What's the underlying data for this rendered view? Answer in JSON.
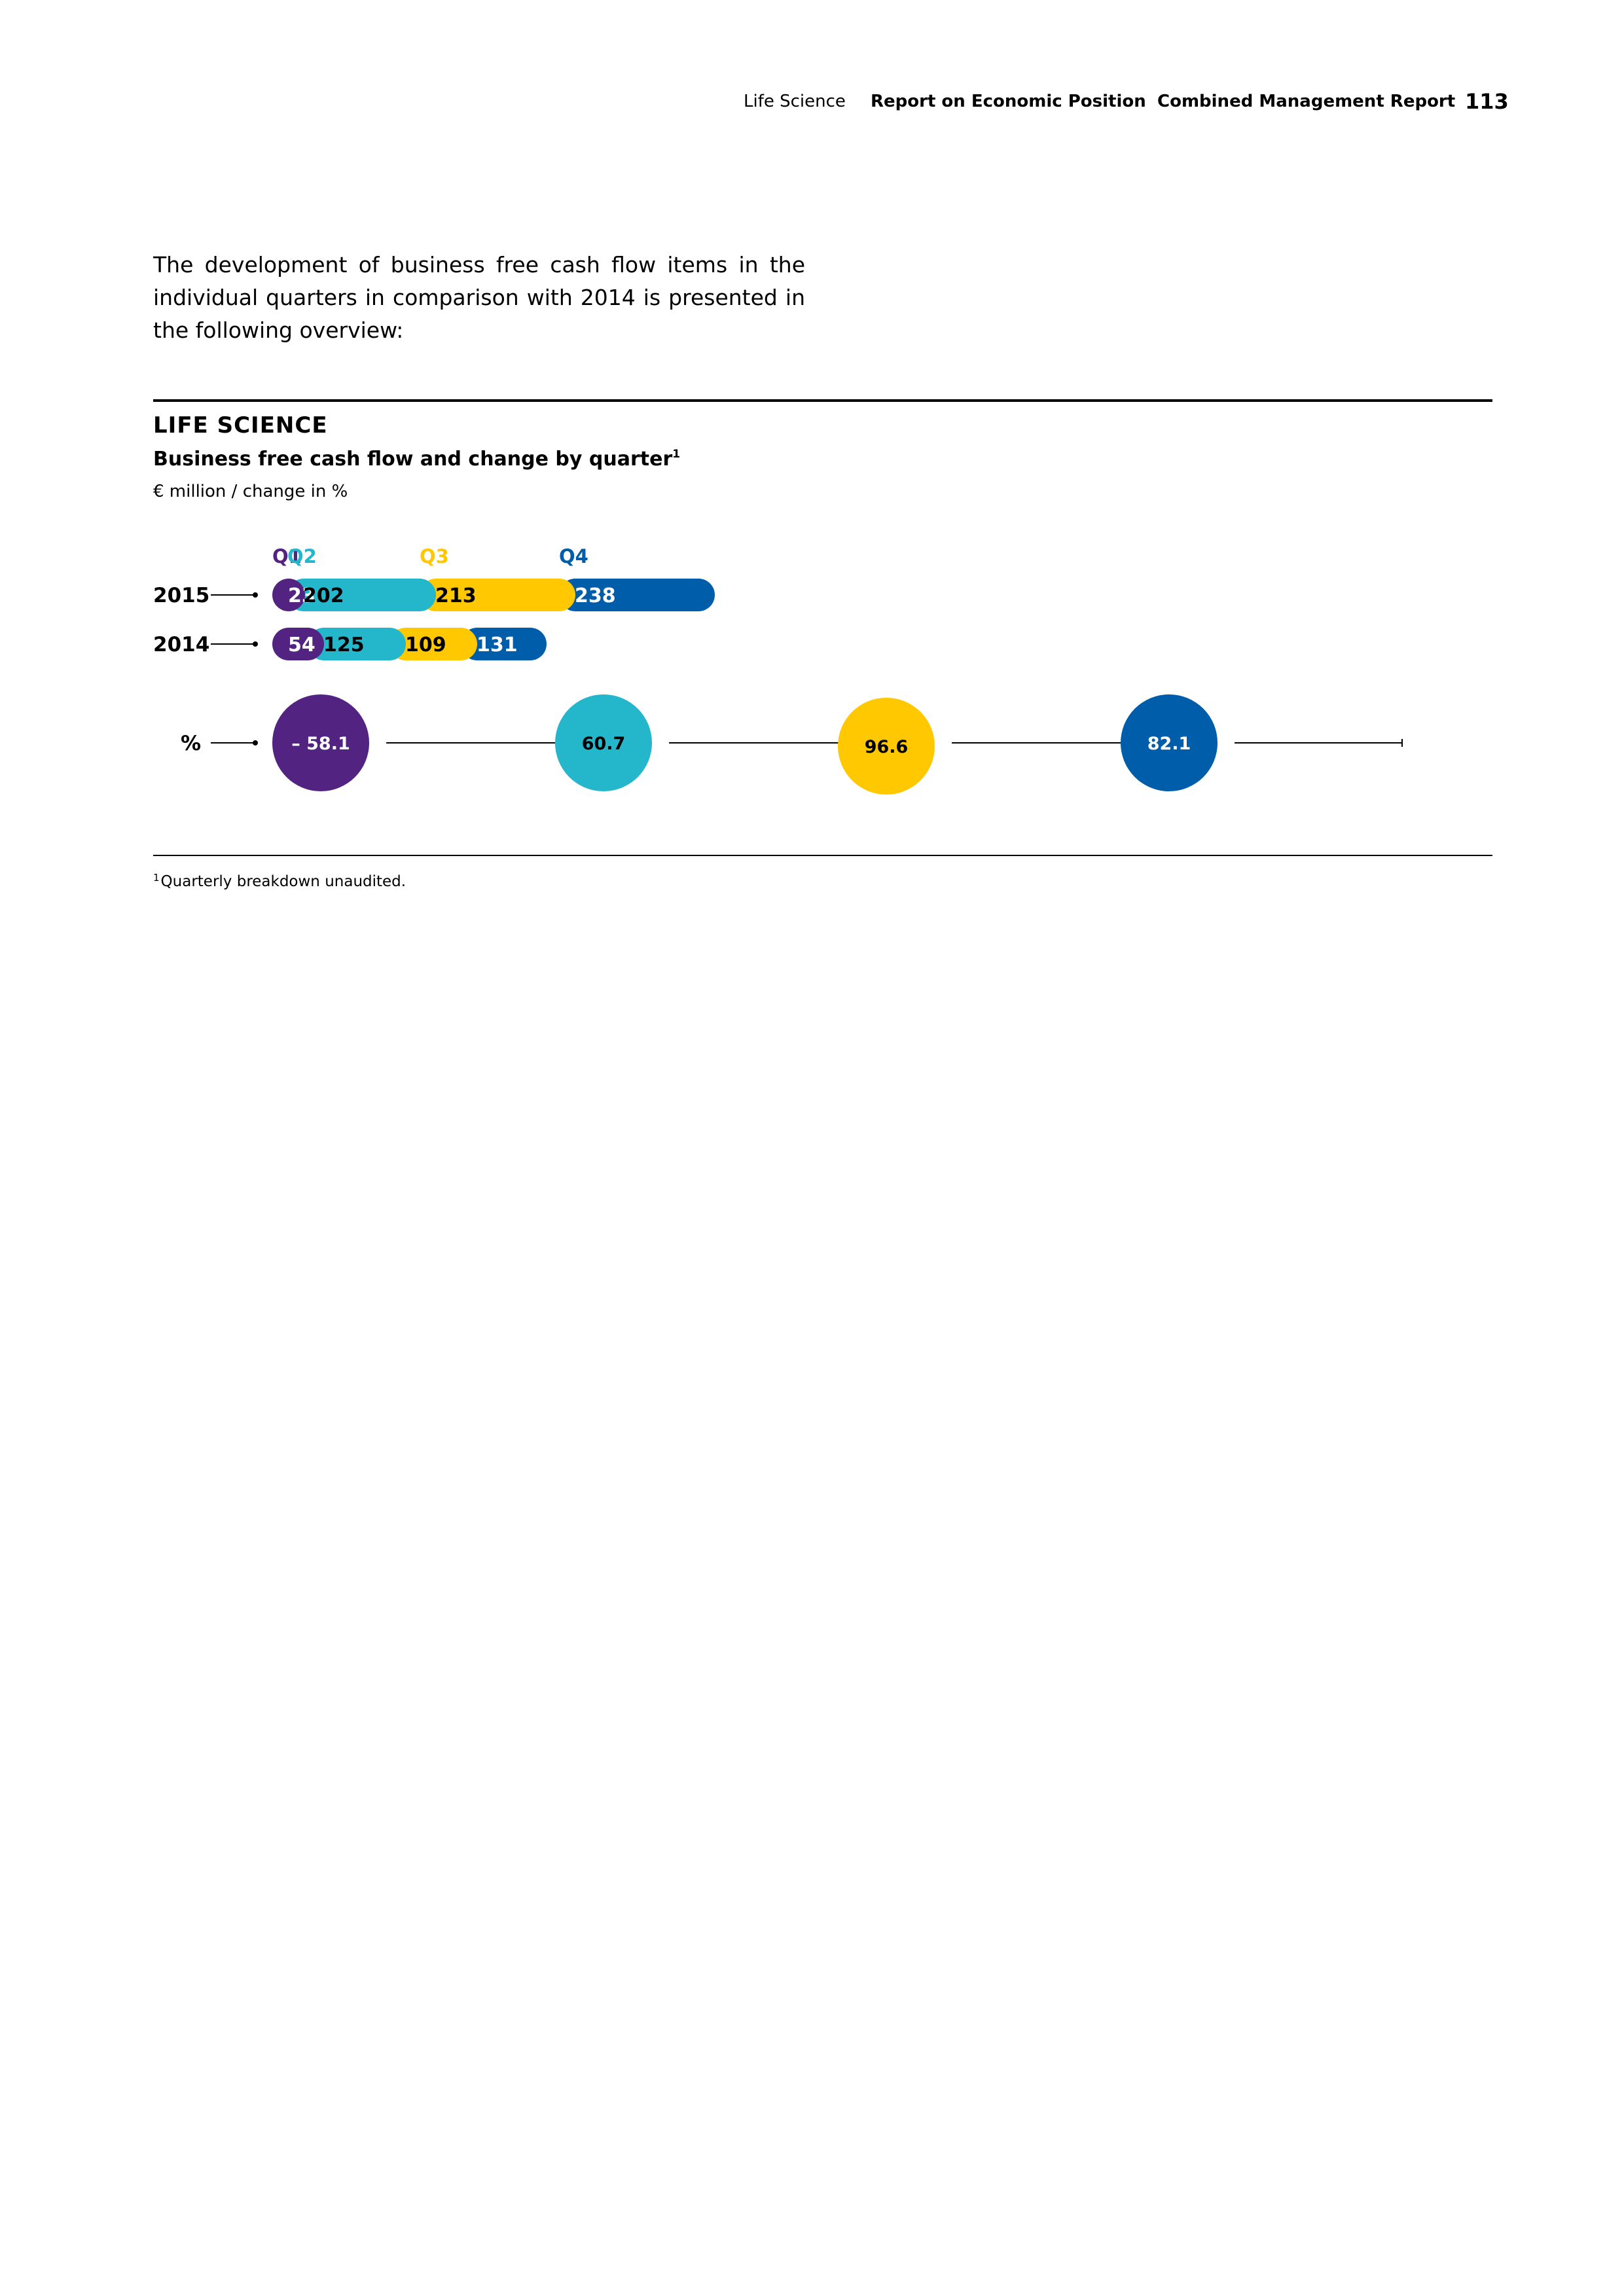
{
  "header": {
    "section": "Life Science",
    "chapter": "Report on Economic Position",
    "report": "Combined Management Report",
    "page_number": "113"
  },
  "intro_text": "The development of business free cash flow items in the indi­vidual quarters in comparison with 2014 is presented in the following overview:",
  "section_title": "LIFE SCIENCE",
  "chart_title": "Business free cash flow and change by quarter",
  "chart_title_footnote_mark": "1",
  "chart_subtitle": "€ million / change in %",
  "footnote": {
    "mark": "1",
    "text": "Quarterly breakdown unaudited."
  },
  "chart_data": {
    "type": "bar",
    "orientation": "horizontal-stacked",
    "categories": [
      "Q1",
      "Q2",
      "Q3",
      "Q4"
    ],
    "category_colors": [
      "#532381",
      "#24B7CC",
      "#FFC800",
      "#005DAA"
    ],
    "series": [
      {
        "name": "2015",
        "values": [
          23,
          202,
          213,
          238
        ]
      },
      {
        "name": "2014",
        "values": [
          54,
          125,
          109,
          131
        ]
      }
    ],
    "change_label": "%",
    "change_percent": [
      -58.1,
      60.7,
      96.6,
      82.1
    ],
    "change_display": [
      "– 58.1",
      "60.7",
      "96.6",
      "82.1"
    ],
    "label_text_colors": [
      "#ffffff",
      "#000000",
      "#000000",
      "#ffffff"
    ]
  }
}
